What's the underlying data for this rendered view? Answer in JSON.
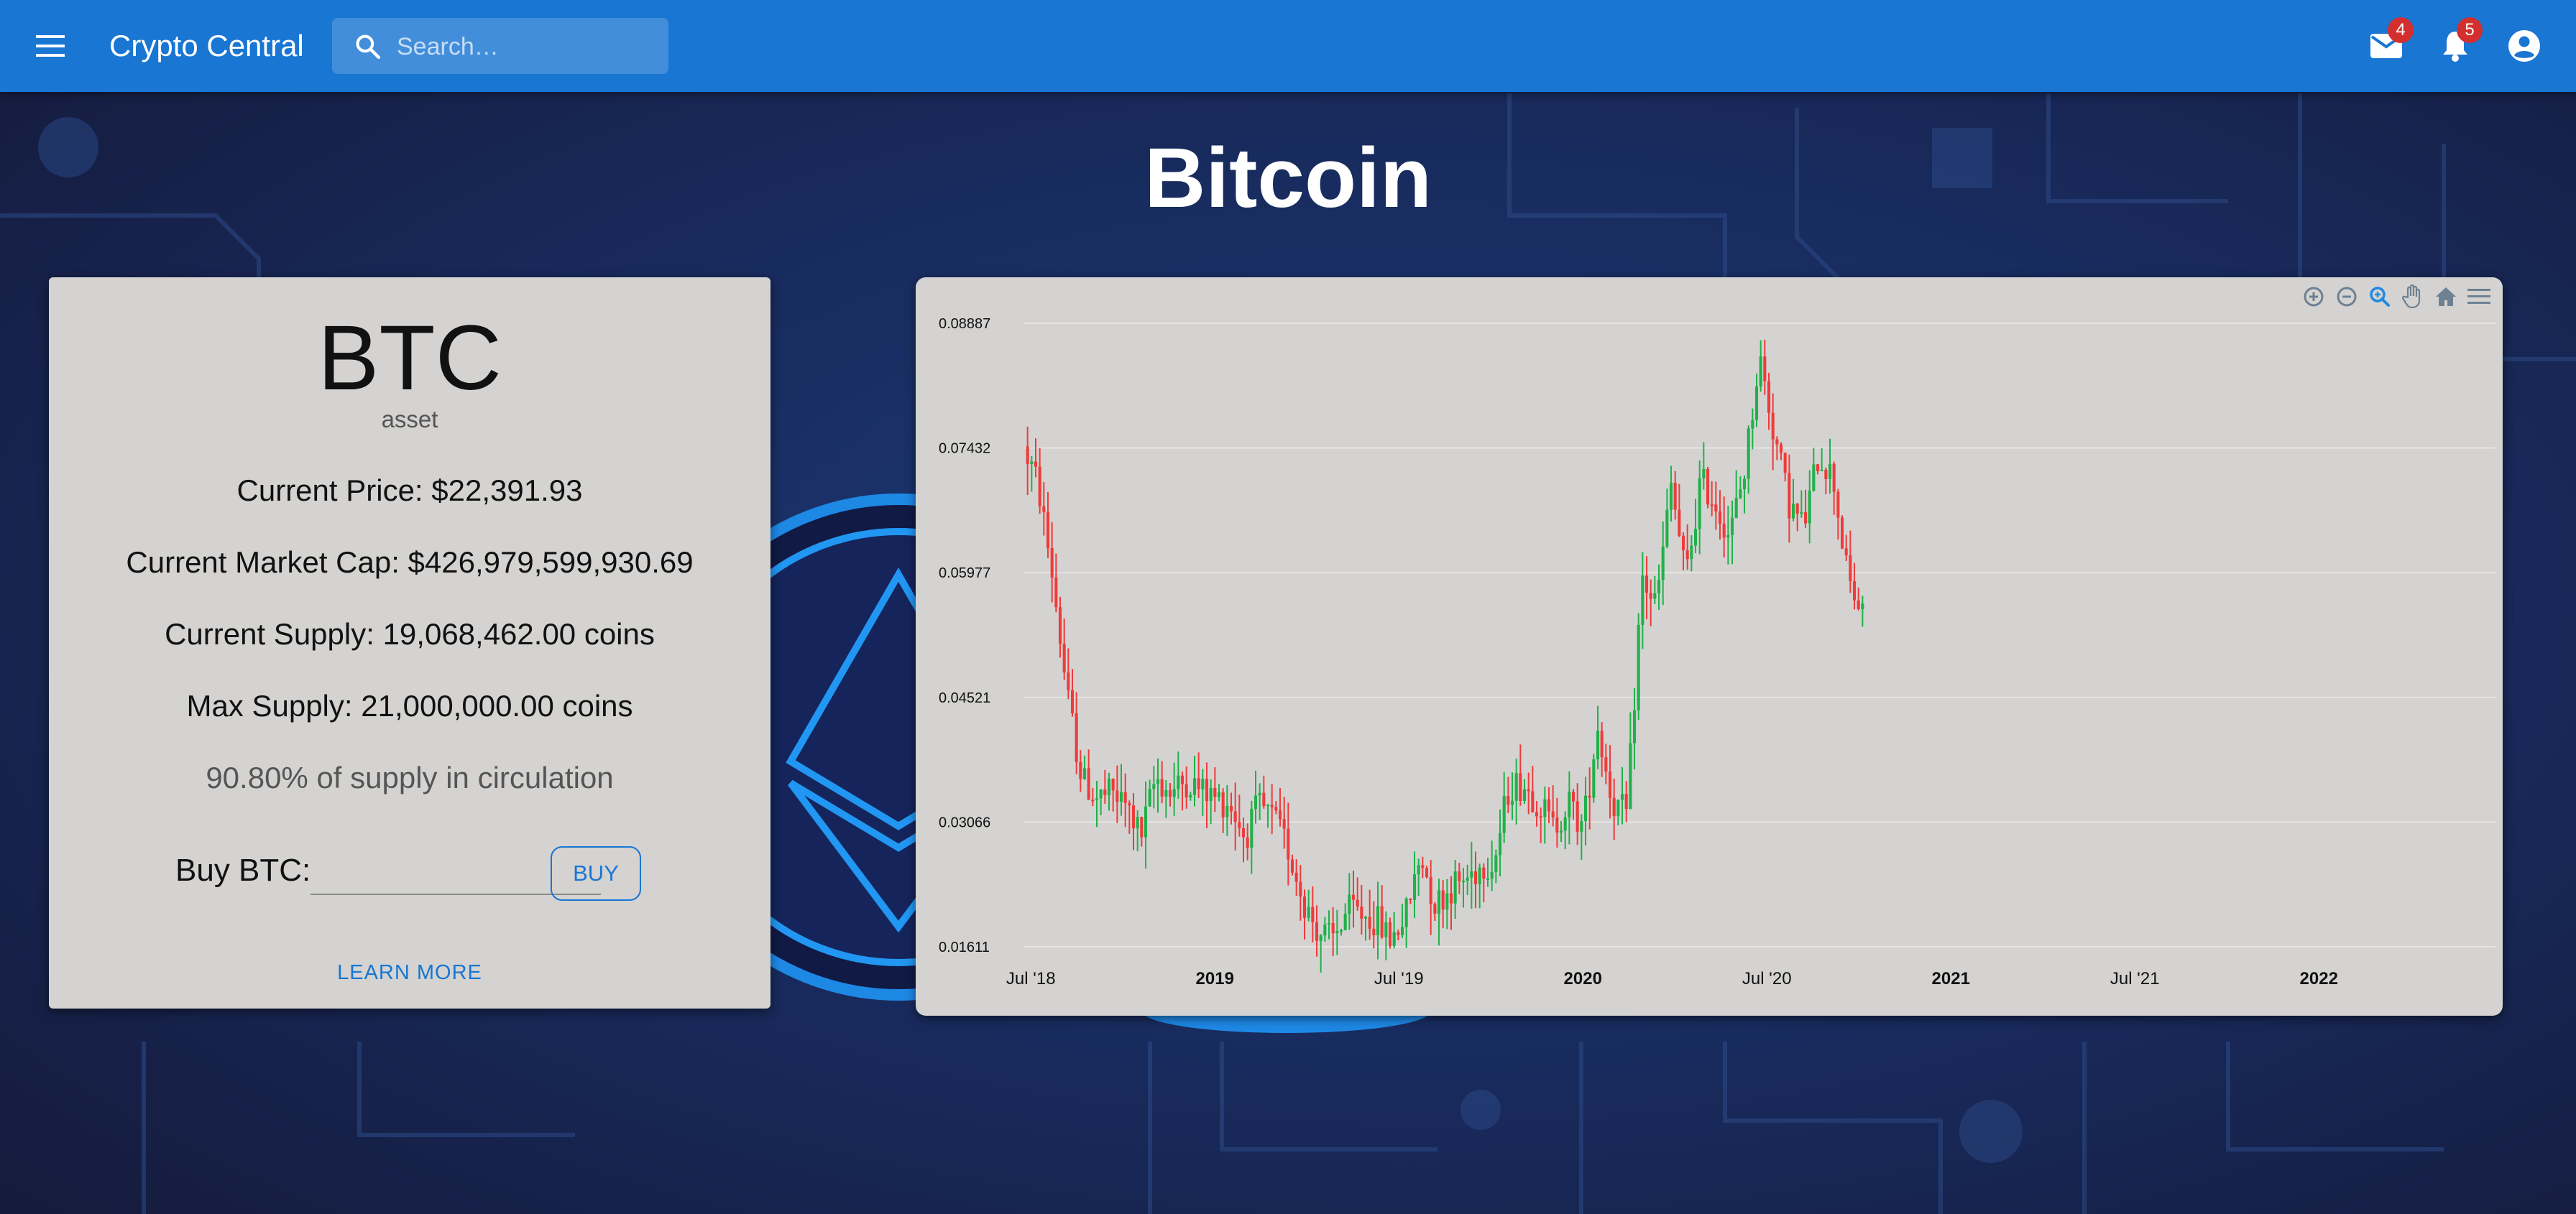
{
  "appbar": {
    "title": "Crypto Central",
    "search_placeholder": "Search…",
    "mail_count": "4",
    "notifications_count": "5",
    "color": "#1976d2"
  },
  "page": {
    "title": "Bitcoin"
  },
  "asset_card": {
    "symbol": "BTC",
    "type": "asset",
    "current_price": "Current Price: $22,391.93",
    "market_cap": "Current Market Cap: $426,979,599,930.69",
    "current_supply": "Current Supply: 19,068,462.00 coins",
    "max_supply": "Max Supply: 21,000,000.00 coins",
    "circulation": "90.80% of supply in circulation",
    "buy_label": "Buy BTC:",
    "buy_value": "",
    "buy_button": "BUY",
    "learn_more": "LEARN MORE"
  },
  "chart_toolbar": [
    "zoom-in-icon",
    "zoom-out-icon",
    "selection-zoom-icon",
    "pan-icon",
    "reset-home-icon",
    "menu-icon"
  ],
  "chart_data": {
    "type": "candlestick",
    "title": "",
    "y_ticks": [
      "0.01611",
      "0.03066",
      "0.04521",
      "0.05977",
      "0.07432",
      "0.08887"
    ],
    "ylim": [
      0.01611,
      0.08887
    ],
    "x_ticks": [
      {
        "label": "Jul '18",
        "t": 0.5,
        "bold": false
      },
      {
        "label": "2019",
        "t": 1.0,
        "bold": true
      },
      {
        "label": "Jul '19",
        "t": 1.5,
        "bold": false
      },
      {
        "label": "2020",
        "t": 2.0,
        "bold": true
      },
      {
        "label": "Jul '20",
        "t": 2.5,
        "bold": false
      },
      {
        "label": "2021",
        "t": 3.0,
        "bold": true
      },
      {
        "label": "Jul '21",
        "t": 3.5,
        "bold": false
      },
      {
        "label": "2022",
        "t": 4.0,
        "bold": true
      }
    ],
    "x_range": [
      0.48,
      4.48
    ],
    "up_color": "#1fb14a",
    "down_color": "#ef3b3b",
    "trend": [
      [
        0.48,
        0.0745
      ],
      [
        0.52,
        0.07
      ],
      [
        0.56,
        0.059
      ],
      [
        0.6,
        0.045
      ],
      [
        0.64,
        0.0355
      ],
      [
        0.68,
        0.0335
      ],
      [
        0.72,
        0.034
      ],
      [
        0.76,
        0.0325
      ],
      [
        0.8,
        0.029
      ],
      [
        0.84,
        0.036
      ],
      [
        0.88,
        0.034
      ],
      [
        0.92,
        0.0355
      ],
      [
        0.96,
        0.0345
      ],
      [
        1.0,
        0.0335
      ],
      [
        1.04,
        0.033
      ],
      [
        1.08,
        0.029
      ],
      [
        1.12,
        0.0325
      ],
      [
        1.16,
        0.031
      ],
      [
        1.2,
        0.0275
      ],
      [
        1.24,
        0.0215
      ],
      [
        1.28,
        0.018
      ],
      [
        1.32,
        0.0168
      ],
      [
        1.36,
        0.0205
      ],
      [
        1.4,
        0.02
      ],
      [
        1.44,
        0.019
      ],
      [
        1.48,
        0.017
      ],
      [
        1.52,
        0.02
      ],
      [
        1.56,
        0.0268
      ],
      [
        1.6,
        0.021
      ],
      [
        1.64,
        0.023
      ],
      [
        1.68,
        0.024
      ],
      [
        1.72,
        0.0255
      ],
      [
        1.76,
        0.0262
      ],
      [
        1.8,
        0.035
      ],
      [
        1.84,
        0.035
      ],
      [
        1.88,
        0.033
      ],
      [
        1.92,
        0.03
      ],
      [
        1.96,
        0.033
      ],
      [
        2.0,
        0.03
      ],
      [
        2.04,
        0.042
      ],
      [
        2.08,
        0.033
      ],
      [
        2.12,
        0.0315
      ],
      [
        2.16,
        0.059
      ],
      [
        2.2,
        0.056
      ],
      [
        2.24,
        0.07
      ],
      [
        2.28,
        0.059
      ],
      [
        2.32,
        0.0705
      ],
      [
        2.36,
        0.068
      ],
      [
        2.4,
        0.064
      ],
      [
        2.44,
        0.072
      ],
      [
        2.48,
        0.085
      ],
      [
        2.52,
        0.076
      ],
      [
        2.56,
        0.068
      ],
      [
        2.6,
        0.065
      ],
      [
        2.64,
        0.0735
      ],
      [
        2.68,
        0.071
      ],
      [
        2.72,
        0.059
      ],
      [
        2.76,
        0.0545
      ]
    ]
  }
}
